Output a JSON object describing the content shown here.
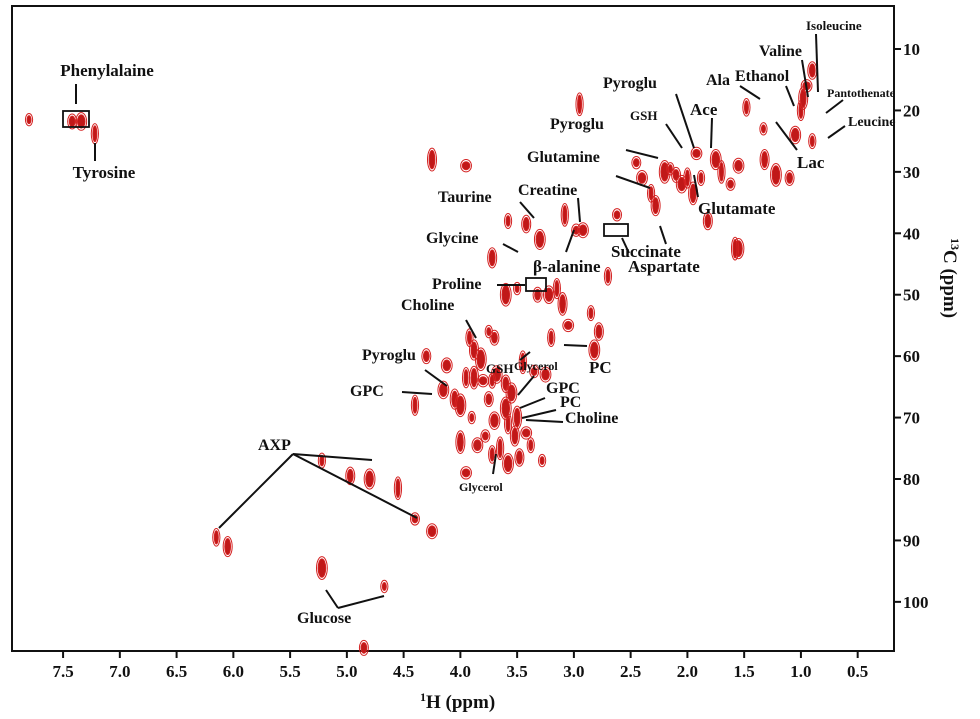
{
  "chart_data": {
    "type": "scatter",
    "xlabel": "H (ppm)",
    "xlabel_sup": "1",
    "ylabel": "C (ppm)",
    "ylabel_sup": "13",
    "xlim": [
      7.95,
      0.18
    ],
    "ylim": [
      108,
      3
    ],
    "x_ticks": [
      7.5,
      7.0,
      6.5,
      6.0,
      5.5,
      5.0,
      4.5,
      4.0,
      3.5,
      3.0,
      2.5,
      2.0,
      1.5,
      1.0,
      0.5
    ],
    "x_tick_labels": [
      "7.5",
      "7.0",
      "6.5",
      "6.0",
      "5.5",
      "5.0",
      "4.5",
      "4.0",
      "3.5",
      "3.0",
      "2.5",
      "2.0",
      "1.5",
      "1.0",
      "0.5"
    ],
    "y_ticks": [
      10,
      20,
      30,
      40,
      50,
      60,
      70,
      80,
      90,
      100
    ],
    "y_tick_labels": [
      "10",
      "20",
      "30",
      "40",
      "50",
      "60",
      "70",
      "80",
      "90",
      "100"
    ],
    "grid": false,
    "peak_color": "#d42222",
    "peaks": [
      [
        7.8,
        21.5
      ],
      [
        7.42,
        21.8
      ],
      [
        7.34,
        21.8
      ],
      [
        7.22,
        23.8
      ],
      [
        4.25,
        28
      ],
      [
        3.95,
        29
      ],
      [
        3.58,
        38
      ],
      [
        3.42,
        38.5
      ],
      [
        3.3,
        41
      ],
      [
        3.08,
        37
      ],
      [
        2.98,
        39.5
      ],
      [
        2.92,
        39.5
      ],
      [
        2.7,
        47
      ],
      [
        3.72,
        44
      ],
      [
        3.6,
        50
      ],
      [
        3.5,
        49
      ],
      [
        3.32,
        50
      ],
      [
        3.22,
        50
      ],
      [
        3.15,
        49
      ],
      [
        3.1,
        51.5
      ],
      [
        3.05,
        55
      ],
      [
        2.85,
        53
      ],
      [
        2.78,
        56
      ],
      [
        2.82,
        59
      ],
      [
        2.95,
        19
      ],
      [
        2.45,
        28.5
      ],
      [
        2.4,
        31
      ],
      [
        2.32,
        33.5
      ],
      [
        2.28,
        35.5
      ],
      [
        2.2,
        30
      ],
      [
        2.15,
        29.5
      ],
      [
        2.1,
        30.5
      ],
      [
        2.05,
        32
      ],
      [
        2.0,
        31
      ],
      [
        1.95,
        33.5
      ],
      [
        1.92,
        27
      ],
      [
        1.88,
        31
      ],
      [
        1.82,
        38
      ],
      [
        1.75,
        28
      ],
      [
        1.7,
        30
      ],
      [
        1.62,
        32
      ],
      [
        1.55,
        29
      ],
      [
        1.48,
        19.5
      ],
      [
        1.32,
        28
      ],
      [
        1.22,
        30.5
      ],
      [
        1.33,
        23
      ],
      [
        1.1,
        31
      ],
      [
        1.05,
        24
      ],
      [
        1.0,
        20
      ],
      [
        0.98,
        18
      ],
      [
        0.95,
        16
      ],
      [
        0.9,
        25
      ],
      [
        0.9,
        13.5
      ],
      [
        1.55,
        42.5
      ],
      [
        1.58,
        42.5
      ],
      [
        2.62,
        37
      ],
      [
        4.12,
        61.5
      ],
      [
        3.92,
        57
      ],
      [
        3.88,
        59
      ],
      [
        3.82,
        60.5
      ],
      [
        3.75,
        56
      ],
      [
        3.7,
        57
      ],
      [
        3.68,
        63
      ],
      [
        3.95,
        63.5
      ],
      [
        3.88,
        63.5
      ],
      [
        3.8,
        64
      ],
      [
        3.72,
        64
      ],
      [
        3.6,
        64.5
      ],
      [
        3.55,
        66
      ],
      [
        3.45,
        61
      ],
      [
        3.35,
        62.5
      ],
      [
        3.25,
        63
      ],
      [
        3.2,
        57
      ],
      [
        4.05,
        67
      ],
      [
        4.0,
        68
      ],
      [
        3.9,
        70
      ],
      [
        3.75,
        67
      ],
      [
        3.7,
        70.5
      ],
      [
        3.58,
        71
      ],
      [
        3.5,
        70
      ],
      [
        3.42,
        72.5
      ],
      [
        3.38,
        74.5
      ],
      [
        3.48,
        76.5
      ],
      [
        3.58,
        77.5
      ],
      [
        3.65,
        75
      ],
      [
        3.78,
        73
      ],
      [
        3.85,
        74.5
      ],
      [
        3.72,
        76
      ],
      [
        3.52,
        73
      ],
      [
        3.6,
        68.5
      ],
      [
        3.28,
        77
      ],
      [
        4.3,
        60
      ],
      [
        4.15,
        65.5
      ],
      [
        4.4,
        68
      ],
      [
        4.0,
        74
      ],
      [
        3.95,
        79
      ],
      [
        5.22,
        77
      ],
      [
        4.97,
        79.5
      ],
      [
        4.8,
        80
      ],
      [
        4.55,
        81.5
      ],
      [
        4.4,
        86.5
      ],
      [
        4.25,
        88.5
      ],
      [
        6.15,
        89.5
      ],
      [
        6.05,
        91
      ],
      [
        5.22,
        94.5
      ],
      [
        4.67,
        97.5
      ],
      [
        4.85,
        107.5
      ]
    ],
    "annotations": [
      "Phenylalaine",
      "Tyrosine",
      "Isoleucine",
      "Valine",
      "Ala",
      "Ethanol",
      "Pantothenate",
      "Leucine",
      "Pyroglu",
      "Ace",
      "GSH",
      "Pyroglu",
      "Glutamine",
      "Lac",
      "Glutamate",
      "Creatine",
      "Taurine",
      "Succinate",
      "Glycine",
      "β-alanine",
      "Aspartate",
      "Proline",
      "Choline",
      "PC",
      "GSH",
      "Pyroglu",
      "GPC",
      "Glycerol",
      "GPC",
      "PC",
      "Choline",
      "AXP",
      "Glycerol",
      "Glucose"
    ]
  }
}
